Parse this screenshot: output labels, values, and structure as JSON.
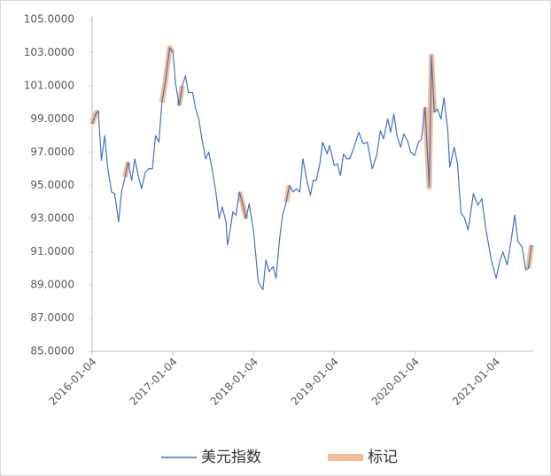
{
  "chart_data": {
    "type": "line",
    "x": [
      "2016-01-04",
      "2016-01-20",
      "2016-02-01",
      "2016-02-15",
      "2016-03-01",
      "2016-03-15",
      "2016-04-01",
      "2016-04-15",
      "2016-05-03",
      "2016-05-16",
      "2016-06-01",
      "2016-06-15",
      "2016-07-01",
      "2016-07-15",
      "2016-08-01",
      "2016-08-15",
      "2016-09-01",
      "2016-09-15",
      "2016-10-03",
      "2016-10-17",
      "2016-11-01",
      "2016-11-15",
      "2016-12-01",
      "2016-12-20",
      "2017-01-04",
      "2017-01-15",
      "2017-02-01",
      "2017-02-15",
      "2017-03-01",
      "2017-03-15",
      "2017-04-03",
      "2017-04-17",
      "2017-05-01",
      "2017-05-15",
      "2017-06-01",
      "2017-06-15",
      "2017-07-03",
      "2017-07-17",
      "2017-08-01",
      "2017-08-15",
      "2017-09-01",
      "2017-09-08",
      "2017-09-20",
      "2017-10-02",
      "2017-10-16",
      "2017-11-01",
      "2017-11-15",
      "2017-12-01",
      "2017-12-15",
      "2018-01-04",
      "2018-01-25",
      "2018-02-15",
      "2018-03-01",
      "2018-03-15",
      "2018-04-02",
      "2018-04-16",
      "2018-05-01",
      "2018-05-15",
      "2018-06-01",
      "2018-06-15",
      "2018-07-02",
      "2018-07-16",
      "2018-08-01",
      "2018-08-15",
      "2018-09-04",
      "2018-09-18",
      "2018-10-01",
      "2018-10-15",
      "2018-11-01",
      "2018-11-12",
      "2018-12-03",
      "2018-12-14",
      "2019-01-04",
      "2019-01-18",
      "2019-02-01",
      "2019-02-15",
      "2019-03-01",
      "2019-03-15",
      "2019-04-01",
      "2019-04-25",
      "2019-05-15",
      "2019-06-03",
      "2019-06-25",
      "2019-07-15",
      "2019-08-01",
      "2019-08-15",
      "2019-09-03",
      "2019-09-16",
      "2019-10-01",
      "2019-10-15",
      "2019-11-01",
      "2019-11-15",
      "2019-12-02",
      "2019-12-16",
      "2020-01-03",
      "2020-01-20",
      "2020-02-03",
      "2020-02-19",
      "2020-03-09",
      "2020-03-19",
      "2020-04-01",
      "2020-04-15",
      "2020-05-01",
      "2020-05-15",
      "2020-06-01",
      "2020-06-10",
      "2020-06-30",
      "2020-07-15",
      "2020-07-31",
      "2020-08-14",
      "2020-09-01",
      "2020-09-25",
      "2020-10-15",
      "2020-11-02",
      "2020-11-20",
      "2020-12-15",
      "2021-01-06",
      "2021-01-20",
      "2021-02-05",
      "2021-02-25",
      "2021-03-15",
      "2021-03-31",
      "2021-04-15",
      "2021-05-03",
      "2021-05-20",
      "2021-06-01",
      "2021-06-15"
    ],
    "series": [
      {
        "name": "美元指数",
        "color": "#4472c4",
        "width": 1.2,
        "values": [
          98.7,
          99.3,
          99.5,
          96.5,
          98.0,
          96.0,
          94.6,
          94.5,
          92.8,
          94.6,
          95.5,
          96.4,
          95.3,
          96.6,
          95.5,
          94.8,
          95.8,
          96.0,
          96.0,
          98.0,
          97.6,
          100.0,
          101.3,
          103.3,
          103.0,
          101.2,
          99.8,
          101.0,
          101.6,
          100.6,
          100.6,
          99.6,
          99.0,
          97.8,
          96.6,
          97.0,
          95.8,
          94.6,
          93.0,
          93.7,
          92.8,
          91.4,
          92.3,
          93.4,
          93.2,
          94.6,
          93.9,
          93.0,
          93.9,
          92.2,
          89.2,
          88.7,
          90.5,
          89.8,
          90.1,
          89.4,
          91.7,
          93.2,
          94.0,
          95.0,
          94.6,
          94.8,
          94.6,
          96.6,
          95.2,
          94.4,
          95.3,
          95.3,
          96.4,
          97.6,
          96.9,
          97.4,
          96.2,
          96.3,
          95.6,
          96.9,
          96.6,
          96.6,
          97.2,
          98.2,
          97.5,
          97.6,
          96.0,
          96.8,
          98.3,
          97.8,
          99.0,
          98.2,
          99.3,
          98.0,
          97.3,
          98.1,
          97.7,
          97.0,
          96.8,
          97.6,
          97.8,
          99.7,
          94.9,
          102.8,
          99.4,
          99.6,
          99.0,
          100.3,
          98.3,
          96.1,
          97.3,
          96.3,
          93.3,
          93.1,
          92.3,
          94.5,
          93.8,
          94.2,
          92.4,
          90.5,
          89.4,
          90.3,
          91.0,
          90.2,
          91.7,
          93.2,
          91.6,
          91.3,
          89.9,
          90.0,
          91.4
        ]
      },
      {
        "name": "标记",
        "color": "#f4b183",
        "width": 6,
        "values": [
          98.7,
          99.3,
          99.5,
          null,
          null,
          null,
          null,
          null,
          null,
          null,
          95.5,
          96.4,
          null,
          null,
          null,
          null,
          null,
          null,
          null,
          null,
          null,
          100.0,
          101.3,
          103.3,
          103.0,
          null,
          99.8,
          101.0,
          null,
          null,
          null,
          null,
          null,
          null,
          null,
          null,
          null,
          null,
          null,
          null,
          null,
          null,
          null,
          null,
          null,
          94.6,
          93.9,
          93.0,
          null,
          null,
          null,
          null,
          null,
          null,
          null,
          null,
          null,
          null,
          94.0,
          95.0,
          null,
          null,
          null,
          null,
          null,
          null,
          null,
          null,
          null,
          null,
          null,
          null,
          null,
          null,
          null,
          null,
          null,
          null,
          null,
          null,
          null,
          null,
          null,
          null,
          null,
          null,
          null,
          null,
          null,
          null,
          null,
          null,
          null,
          null,
          null,
          null,
          null,
          99.7,
          94.9,
          102.8,
          99.4,
          null,
          null,
          null,
          null,
          null,
          null,
          null,
          null,
          null,
          null,
          null,
          null,
          null,
          null,
          null,
          null,
          null,
          null,
          null,
          null,
          null,
          null,
          null,
          null,
          90.0,
          91.4
        ]
      }
    ],
    "xlim": [
      "2016-01-04",
      "2021-06-15"
    ],
    "xticks": [
      "2016-01-04",
      "2017-01-04",
      "2018-01-04",
      "2019-01-04",
      "2020-01-04",
      "2021-01-04"
    ],
    "ylim": [
      85,
      105
    ],
    "yticks": [
      {
        "value": 85,
        "label": "85.0000"
      },
      {
        "value": 87,
        "label": "87.0000"
      },
      {
        "value": 89,
        "label": "89.0000"
      },
      {
        "value": 91,
        "label": "91.0000"
      },
      {
        "value": 93,
        "label": "93.0000"
      },
      {
        "value": 95,
        "label": "95.0000"
      },
      {
        "value": 97,
        "label": "97.0000"
      },
      {
        "value": 99,
        "label": "99.0000"
      },
      {
        "value": 101,
        "label": "101.0000"
      },
      {
        "value": 103,
        "label": "103.0000"
      },
      {
        "value": 105,
        "label": "105.0000"
      }
    ],
    "grid": false
  }
}
